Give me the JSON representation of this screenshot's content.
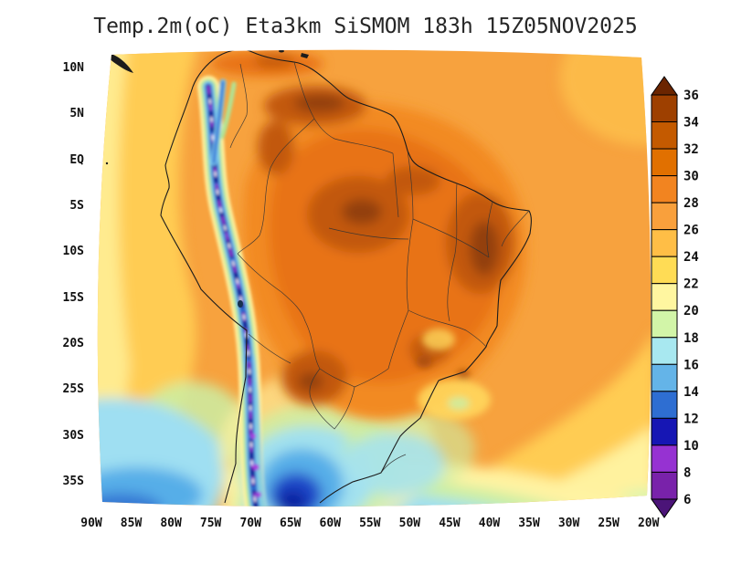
{
  "title": "Temp.2m(oC) Eta3km SiSMOM 183h 15Z05NOV2025",
  "axes": {
    "y_ticks": [
      "10N",
      "5N",
      "EQ",
      "5S",
      "10S",
      "15S",
      "20S",
      "25S",
      "30S",
      "35S"
    ],
    "x_ticks": [
      "90W",
      "85W",
      "80W",
      "75W",
      "70W",
      "65W",
      "60W",
      "55W",
      "50W",
      "45W",
      "40W",
      "35W",
      "30W",
      "25W",
      "20W"
    ]
  },
  "colorbar": {
    "labels": [
      "36",
      "34",
      "32",
      "30",
      "28",
      "26",
      "24",
      "22",
      "20",
      "18",
      "16",
      "14",
      "12",
      "10",
      "8",
      "6"
    ],
    "segment_colors_top_to_bottom": [
      "#9E4000",
      "#C45A00",
      "#E17000",
      "#F28420",
      "#F9A03C",
      "#FFBE46",
      "#FFDC55",
      "#FFF6A0",
      "#D2F5A8",
      "#A8E8F0",
      "#64B4E8",
      "#2E6ED2",
      "#1616B4",
      "#9632D2",
      "#7922AA"
    ],
    "top_cap_color": "#6B2500",
    "bottom_cap_color": "#4B1478"
  },
  "chart_data": {
    "type": "heatmap",
    "title": "Temp.2m(oC) Eta3km SiSMOM 183h 15Z05NOV2025",
    "variable": "Temp.2m(oC)",
    "model": "Eta3km SiSMOM",
    "forecast_hour": "183h",
    "valid_time": "15Z05NOV2025",
    "region": "South America",
    "x_ticks": [
      "90W",
      "85W",
      "80W",
      "75W",
      "70W",
      "65W",
      "60W",
      "55W",
      "50W",
      "45W",
      "40W",
      "35W",
      "30W",
      "25W",
      "20W"
    ],
    "y_ticks": [
      "10N",
      "5N",
      "EQ",
      "5S",
      "10S",
      "15S",
      "20S",
      "25S",
      "30S",
      "35S"
    ],
    "colorbar_levels_degC": [
      6,
      8,
      10,
      12,
      14,
      16,
      18,
      20,
      22,
      24,
      26,
      28,
      30,
      32,
      34,
      36
    ],
    "colorbar_colors_low_to_high": [
      "#7922AA",
      "#9632D2",
      "#1616B4",
      "#2E6ED2",
      "#64B4E8",
      "#A8E8F0",
      "#D2F5A8",
      "#FFF6A0",
      "#FFDC55",
      "#FFBE46",
      "#F9A03C",
      "#F28420",
      "#E17000",
      "#C45A00",
      "#9E4000"
    ],
    "field_summary": [
      "34-36C cores over interior northeast Brazil, far northern Brazil and the Paraguay/Chaco region",
      "30-34C across central Brazil and the Amazon interior",
      "26-30C over the tropical Atlantic, Caribbean coast and Amazon basin",
      "22-26C over the eastern Pacific and subtropical South Atlantic",
      "6-16C cold ribbon along the Andes cordillera",
      "14-22C over far southern South America and the South Atlantic near 35S"
    ]
  }
}
